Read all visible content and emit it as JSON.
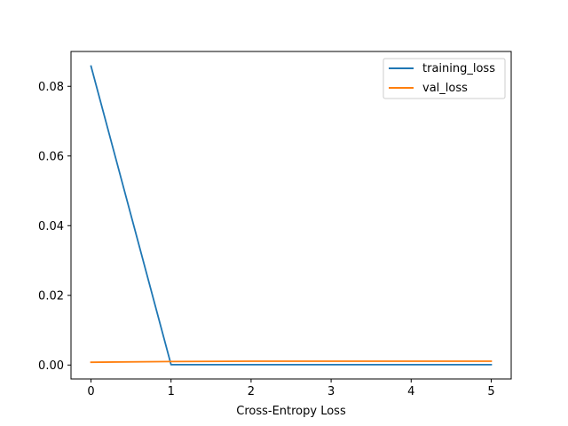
{
  "chart_data": {
    "type": "line",
    "x": [
      0,
      1,
      2,
      3,
      4,
      5
    ],
    "series": [
      {
        "name": "training_loss",
        "color": "#1f77b4",
        "values": [
          0.0858,
          0.0001,
          0.0001,
          0.0001,
          0.0001,
          0.0001
        ]
      },
      {
        "name": "val_loss",
        "color": "#ff7f0e",
        "values": [
          0.0008,
          0.001,
          0.0011,
          0.0011,
          0.0011,
          0.0011
        ]
      }
    ],
    "xlabel": "Cross-Entropy Loss",
    "ylabel": "",
    "title": "",
    "xlim": [
      -0.25,
      5.25
    ],
    "ylim": [
      -0.004,
      0.09
    ],
    "xticks": [
      0,
      1,
      2,
      3,
      4,
      5
    ],
    "xtick_labels": [
      "0",
      "1",
      "2",
      "3",
      "4",
      "5"
    ],
    "yticks": [
      0.0,
      0.02,
      0.04,
      0.06,
      0.08
    ],
    "ytick_labels": [
      "0.00",
      "0.02",
      "0.04",
      "0.06",
      "0.08"
    ],
    "grid": false,
    "legend": "top-right"
  }
}
